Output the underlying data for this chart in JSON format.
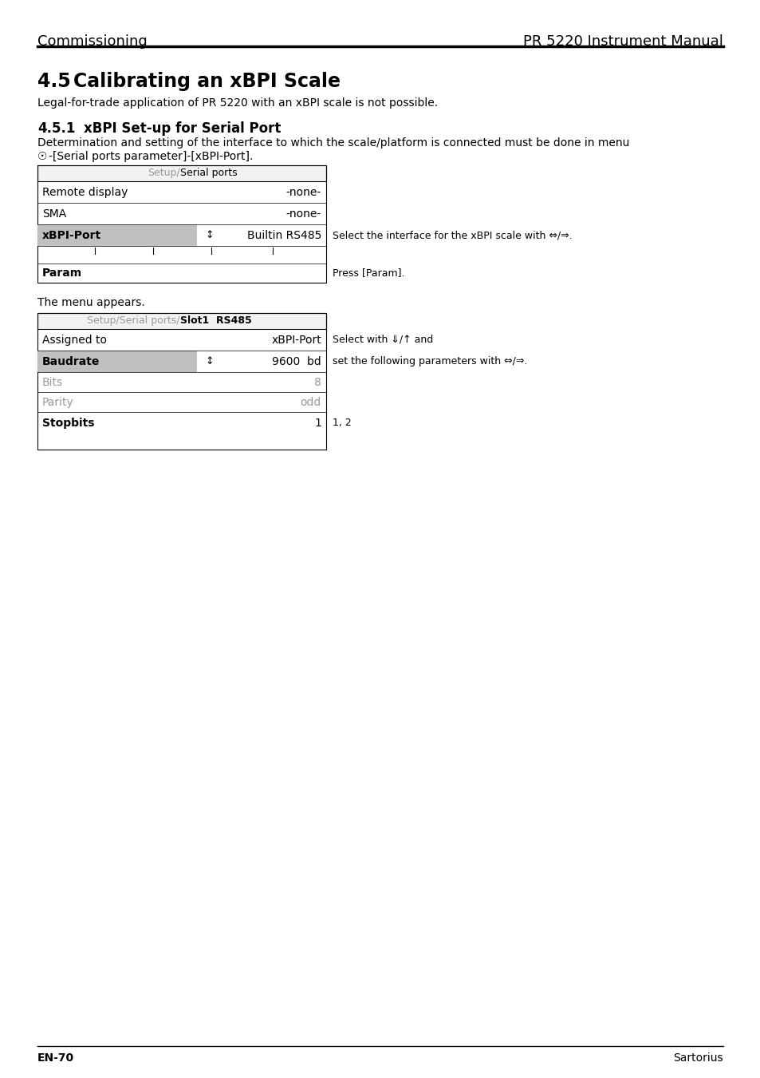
{
  "header_left": "Commissioning",
  "header_right": "PR 5220 Instrument Manual",
  "footer_left": "EN-70",
  "footer_right": "Sartorius",
  "section_title": "4.5",
  "section_title2": "Calibrating an xBPI Scale",
  "legal_text": "Legal-for-trade application of PR 5220 with an xBPI scale is not possible.",
  "subsection_num": "4.5.1",
  "subsection_name": "xBPI Set-up for Serial Port",
  "desc_text": "Determination and setting of the interface to which the scale/platform is connected must be done in menu",
  "menu_path": "-[Serial ports parameter]-[xBPI-Port].",
  "table1_header_gray": "Setup/",
  "table1_header_black": "Serial ports",
  "table1_note_xbpi": "Select the interface for the xBPI scale with ⇔/⇒.",
  "table1_note_param": "Press [Param].",
  "menu_appears": "The menu appears.",
  "table2_header_gray": "Setup/Serial ports/",
  "table2_header_bold": "Slot1  RS485",
  "t2r1_label": "Assigned to",
  "t2r1_value": "xBPI-Port",
  "t2r1_note": "Select with ⇓/↑ and",
  "t2r2_label": "Baudrate",
  "t2r2_value": "9600  bd",
  "t2r2_note": "set the following parameters with ⇔/⇒.",
  "t2r3_label": "Bits",
  "t2r3_value": "8",
  "t2r4_label": "Parity",
  "t2r4_value": "odd",
  "t2r5_label": "Stopbits",
  "t2r5_value": "1",
  "t2r5_note": "1, 2",
  "bg_color": "#ffffff",
  "highlight_color": "#c0c0c0",
  "gray_text": "#999999",
  "table_border_color": "#000000",
  "header_font_size": 13,
  "section_font_size": 17,
  "subsection_font_size": 12,
  "body_font_size": 10,
  "table_font_size": 10,
  "small_font_size": 9,
  "note_font_size": 9
}
